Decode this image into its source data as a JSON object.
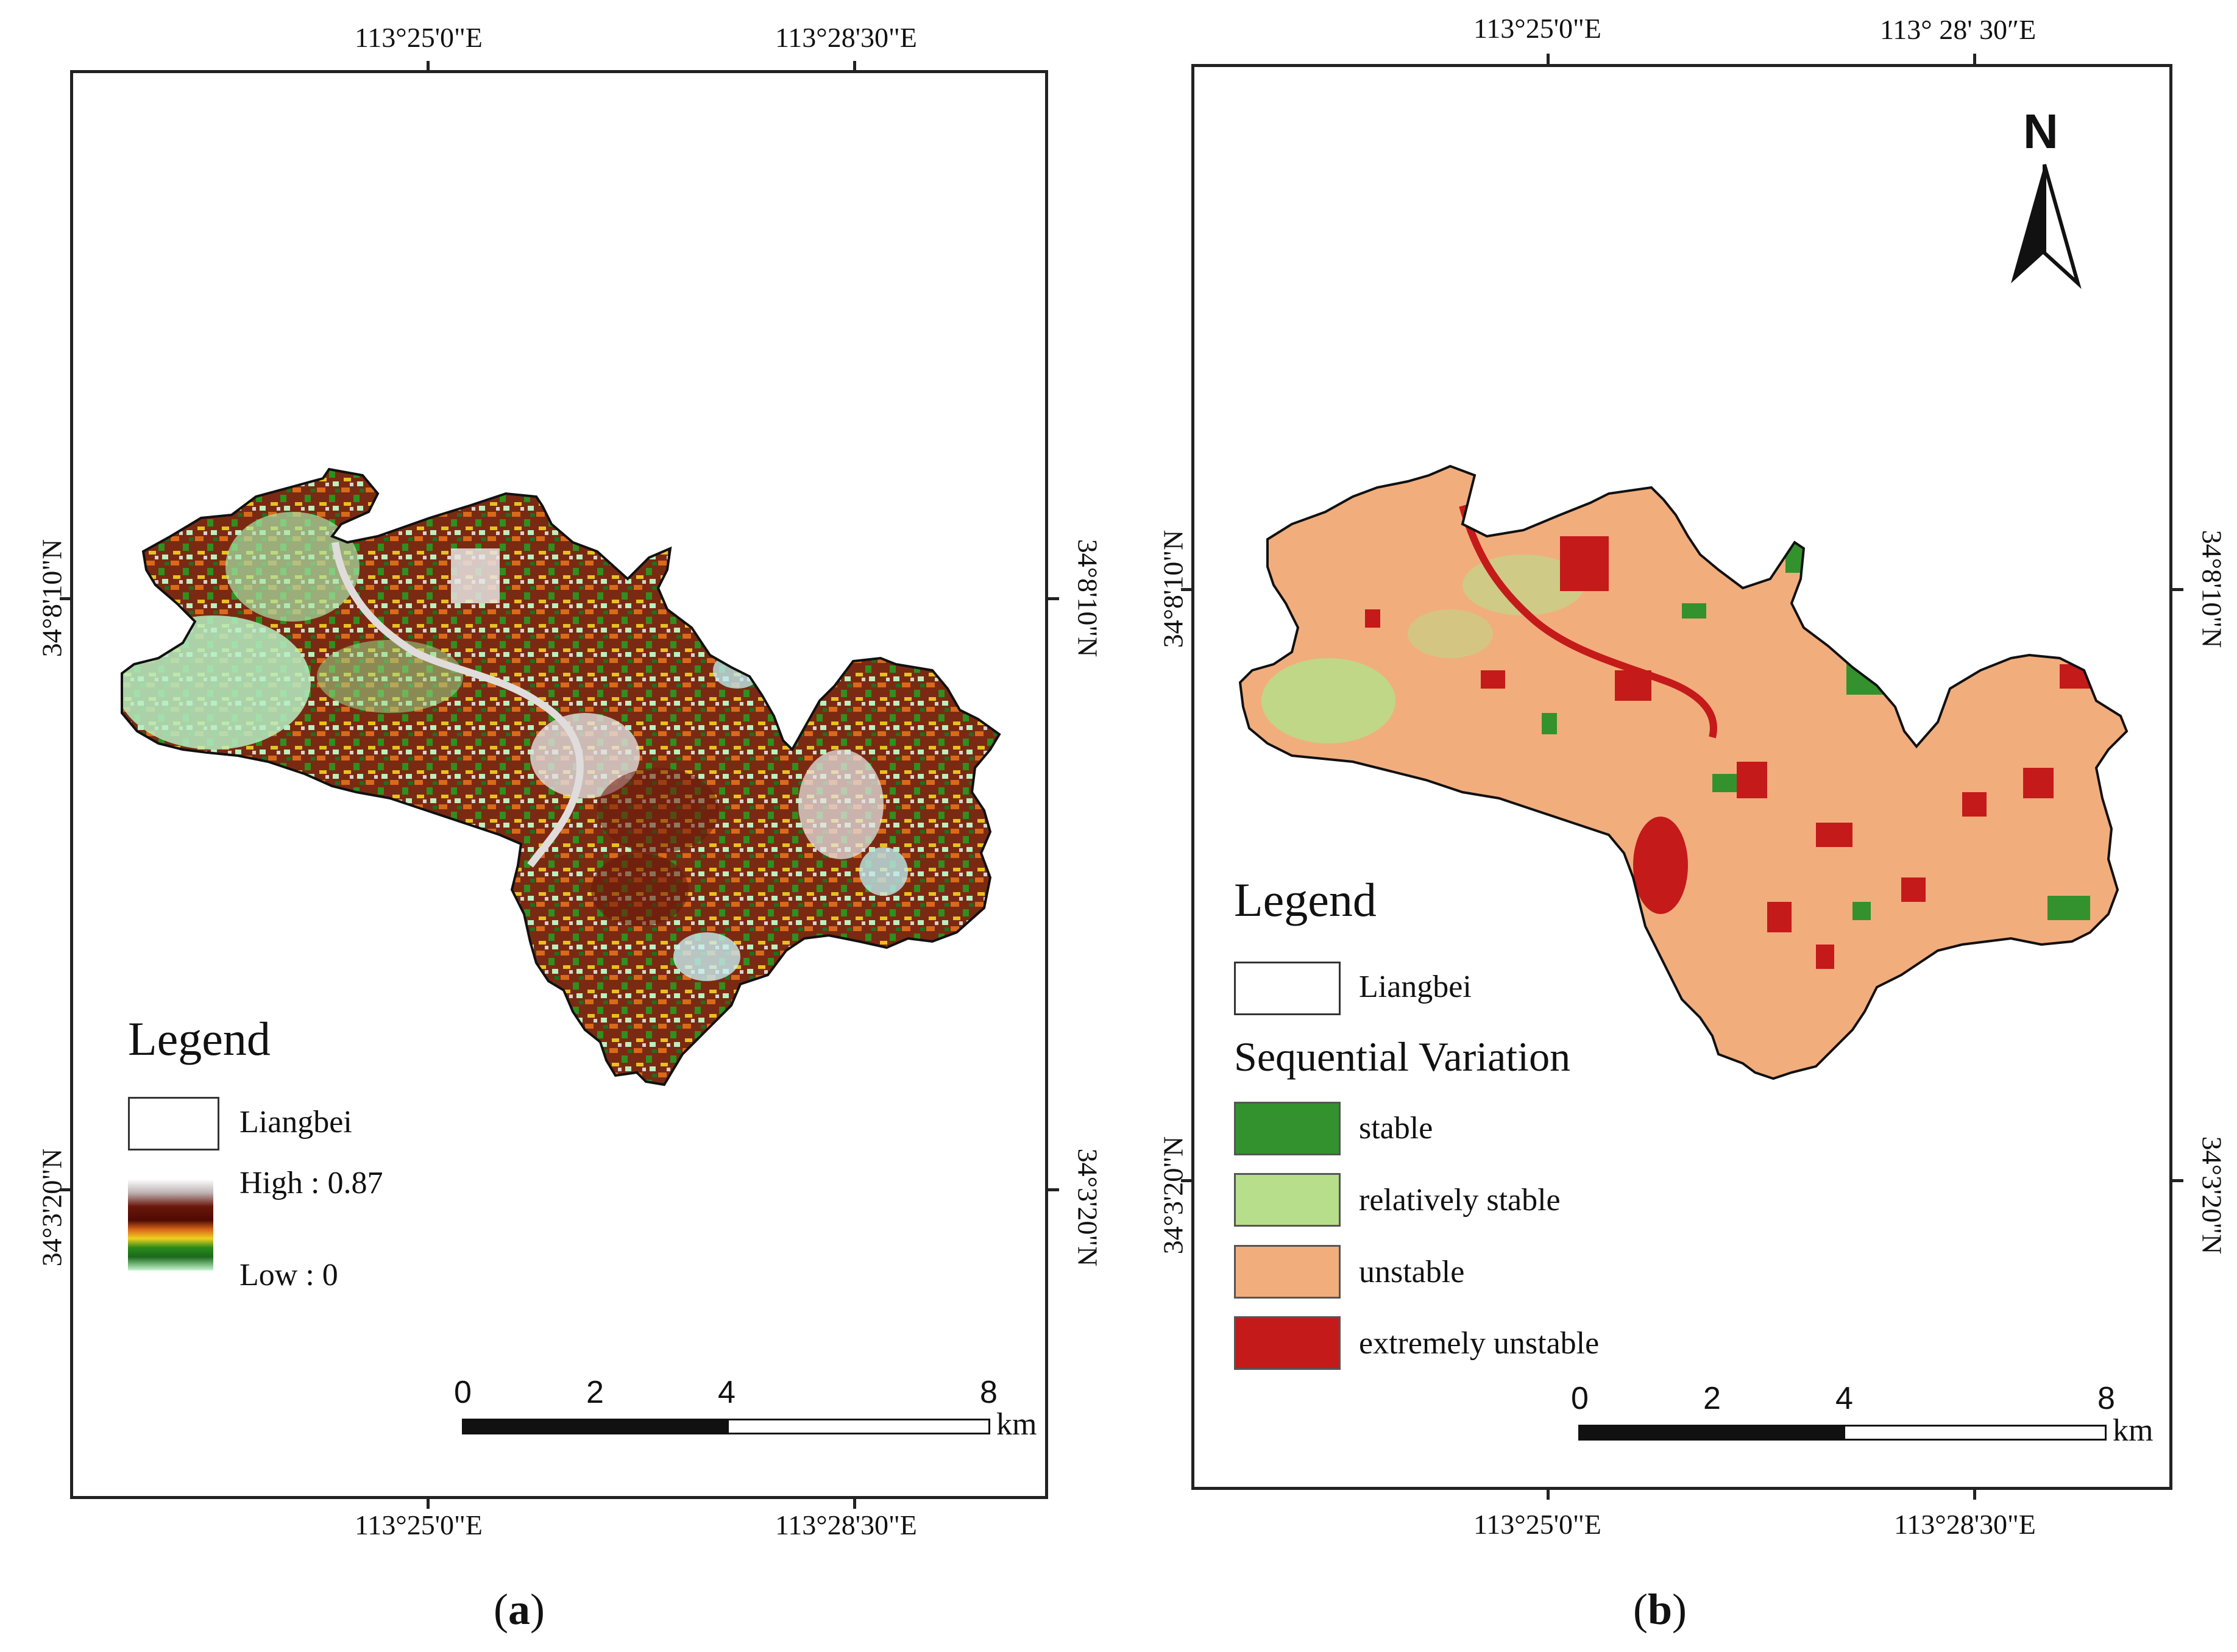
{
  "panel_a": {
    "caption_open": "(",
    "caption_letter": "a",
    "caption_close": ")",
    "top_lon": [
      "113°25'0\"E",
      "113°28'30\"E"
    ],
    "bottom_lon": [
      "113°25'0\"E",
      "113°28'30\"E"
    ],
    "left_lat": [
      "34°8'10\"N",
      "34°3'20\"N"
    ],
    "right_lat": [
      "34°8'10\"N",
      "34°3'20\"N"
    ],
    "legend": {
      "title": "Legend",
      "boundary_label": "Liangbei",
      "high_label": "High : 0.87",
      "low_label": "Low : 0",
      "high_value": 0.87,
      "low_value": 0
    },
    "scale": {
      "ticks": [
        "0",
        "2",
        "4",
        "8"
      ],
      "unit": "km"
    }
  },
  "panel_b": {
    "caption_open": "(",
    "caption_letter": "b",
    "caption_close": ")",
    "top_lon": [
      "113°25'0\"E",
      "113°  28' 30″E"
    ],
    "bottom_lon": [
      "113°25'0\"E",
      "113°28'30\"E"
    ],
    "left_lat": [
      "34°8'10\"N",
      "34°3'20\"N"
    ],
    "right_lat": [
      "34°8'10\"N",
      "34°3'20\"N"
    ],
    "north_label": "N",
    "legend": {
      "title": "Legend",
      "boundary_label": "Liangbei",
      "section_title": "Sequential Variation",
      "classes": [
        {
          "label": "stable",
          "color": "#33922d"
        },
        {
          "label": "relatively stable",
          "color": "#b7de8a"
        },
        {
          "label": "unstable",
          "color": "#f2ad7d"
        },
        {
          "label": "extremely unstable",
          "color": "#c41a1a"
        }
      ]
    },
    "scale": {
      "ticks": [
        "0",
        "2",
        "4",
        "8"
      ],
      "unit": "km"
    }
  },
  "colors": {
    "ramp_a": [
      "#ffffff",
      "#c8bfbf",
      "#7a1a10",
      "#5a0e05",
      "#d8661a",
      "#f0d020",
      "#2a8a1a",
      "#1a6a1a",
      "#b9f3c4"
    ]
  }
}
